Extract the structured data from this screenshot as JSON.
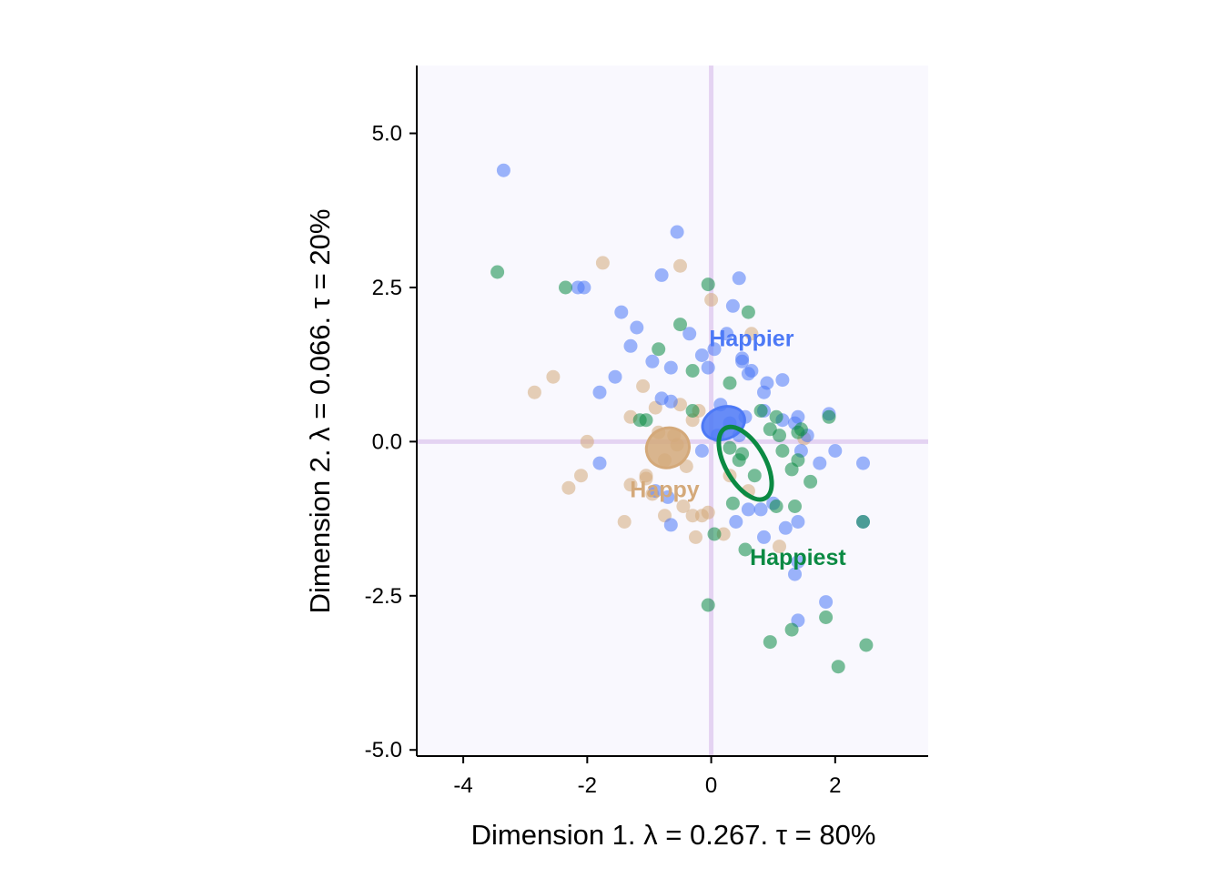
{
  "chart_data": {
    "type": "scatter",
    "title": "",
    "xlabel": "Dimension 1.   λ = 0.267.  τ = 80%",
    "ylabel": "Dimension 2.   λ = 0.066.  τ = 20%",
    "xlim": [
      -4.75,
      3.5
    ],
    "ylim": [
      -5.1,
      6.1
    ],
    "x_ticks": [
      -4,
      -2,
      0,
      2
    ],
    "y_ticks": [
      5.0,
      2.5,
      0.0,
      -2.5,
      -5.0
    ],
    "x_tick_labels": [
      "-4",
      "-2",
      "0",
      "2"
    ],
    "y_tick_labels": [
      "5.0",
      "2.5",
      "0.0",
      "-2.5",
      "-5.0"
    ],
    "reference_lines": {
      "x": 0,
      "y": 0,
      "color": "#e4d3f2"
    },
    "panel_background": "#f9f8fe",
    "grid": false,
    "legend": "none",
    "series": [
      {
        "name": "Happy",
        "color": "#d4a97a",
        "centroid": [
          -0.7,
          -0.1
        ],
        "ellipse": {
          "rx": 0.35,
          "ry": 0.32,
          "angle": -20
        },
        "points": [
          [
            -0.5,
            2.85
          ],
          [
            -1.75,
            2.9
          ],
          [
            0.0,
            2.3
          ],
          [
            0.65,
            1.75
          ],
          [
            -2.55,
            1.05
          ],
          [
            -2.85,
            0.8
          ],
          [
            -1.1,
            0.9
          ],
          [
            -1.3,
            0.4
          ],
          [
            -0.5,
            0.6
          ],
          [
            -0.9,
            0.55
          ],
          [
            -2.0,
            0.0
          ],
          [
            -1.05,
            -0.55
          ],
          [
            -1.3,
            -0.7
          ],
          [
            -0.95,
            -0.85
          ],
          [
            -1.05,
            -0.6
          ],
          [
            -2.1,
            -0.55
          ],
          [
            -2.3,
            -0.75
          ],
          [
            -1.4,
            -1.3
          ],
          [
            -0.45,
            -1.05
          ],
          [
            -0.75,
            -1.2
          ],
          [
            -0.15,
            -1.2
          ],
          [
            -0.05,
            -1.15
          ],
          [
            -0.25,
            -1.55
          ],
          [
            -0.3,
            -1.2
          ],
          [
            0.2,
            -1.5
          ],
          [
            1.1,
            -1.7
          ],
          [
            0.6,
            -0.8
          ],
          [
            0.3,
            -0.55
          ],
          [
            -0.75,
            -0.3
          ],
          [
            -0.6,
            0.1
          ],
          [
            -0.3,
            0.35
          ],
          [
            -0.55,
            -0.05
          ],
          [
            -0.85,
            0.15
          ],
          [
            1.5,
            0.05
          ],
          [
            -0.4,
            -0.4
          ],
          [
            -0.2,
            0.5
          ]
        ]
      },
      {
        "name": "Happier",
        "color": "#4d79f6",
        "centroid": [
          0.2,
          0.3
        ],
        "ellipse": {
          "rx": 0.35,
          "ry": 0.26,
          "angle": -20
        },
        "points": [
          [
            -3.35,
            4.4
          ],
          [
            -0.55,
            3.4
          ],
          [
            -0.8,
            2.7
          ],
          [
            0.45,
            2.65
          ],
          [
            -2.05,
            2.5
          ],
          [
            -2.15,
            2.5
          ],
          [
            0.35,
            2.2
          ],
          [
            -1.45,
            2.1
          ],
          [
            -1.2,
            1.85
          ],
          [
            -0.35,
            1.75
          ],
          [
            0.25,
            1.75
          ],
          [
            -1.3,
            1.55
          ],
          [
            0.05,
            1.5
          ],
          [
            -0.15,
            1.4
          ],
          [
            0.5,
            1.35
          ],
          [
            0.5,
            1.3
          ],
          [
            -0.95,
            1.3
          ],
          [
            -0.65,
            1.2
          ],
          [
            -0.05,
            1.2
          ],
          [
            0.65,
            1.15
          ],
          [
            0.6,
            1.1
          ],
          [
            -1.55,
            1.05
          ],
          [
            -1.8,
            0.8
          ],
          [
            1.15,
            1.0
          ],
          [
            0.9,
            0.95
          ],
          [
            0.85,
            0.8
          ],
          [
            -0.8,
            0.7
          ],
          [
            -0.65,
            0.65
          ],
          [
            0.55,
            0.4
          ],
          [
            1.15,
            0.35
          ],
          [
            1.4,
            0.4
          ],
          [
            1.9,
            0.45
          ],
          [
            0.85,
            0.5
          ],
          [
            1.35,
            0.3
          ],
          [
            1.55,
            0.1
          ],
          [
            1.45,
            -0.15
          ],
          [
            2.0,
            -0.15
          ],
          [
            1.75,
            -0.35
          ],
          [
            2.45,
            -0.35
          ],
          [
            -1.8,
            -0.35
          ],
          [
            -0.9,
            -0.8
          ],
          [
            -0.7,
            -0.9
          ],
          [
            -0.15,
            -0.15
          ],
          [
            0.1,
            0.1
          ],
          [
            0.6,
            -1.1
          ],
          [
            0.4,
            -1.3
          ],
          [
            0.8,
            -1.1
          ],
          [
            1.0,
            -1.0
          ],
          [
            1.4,
            -1.3
          ],
          [
            -0.65,
            -1.35
          ],
          [
            1.2,
            -1.4
          ],
          [
            0.85,
            -1.55
          ],
          [
            1.4,
            -1.95
          ],
          [
            1.35,
            -2.15
          ],
          [
            1.85,
            -2.6
          ],
          [
            1.4,
            -2.9
          ],
          [
            2.45,
            -1.3
          ],
          [
            0.15,
            0.6
          ],
          [
            0.3,
            0.3
          ],
          [
            0.45,
            0.1
          ]
        ]
      },
      {
        "name": "Happiest",
        "color": "#0b8a43",
        "centroid": [
          0.55,
          -0.35
        ],
        "ellipse": {
          "rx": 0.65,
          "ry": 0.32,
          "angle": 60
        },
        "points": [
          [
            -3.45,
            2.75
          ],
          [
            -2.35,
            2.5
          ],
          [
            -0.05,
            2.55
          ],
          [
            0.6,
            2.1
          ],
          [
            -0.5,
            1.9
          ],
          [
            -0.85,
            1.5
          ],
          [
            -0.3,
            1.15
          ],
          [
            0.3,
            0.95
          ],
          [
            0.8,
            0.5
          ],
          [
            1.05,
            0.4
          ],
          [
            1.45,
            0.2
          ],
          [
            1.4,
            0.15
          ],
          [
            1.9,
            0.4
          ],
          [
            0.95,
            0.2
          ],
          [
            1.1,
            0.1
          ],
          [
            -1.15,
            0.35
          ],
          [
            -1.05,
            0.35
          ],
          [
            -0.3,
            0.5
          ],
          [
            1.15,
            -0.15
          ],
          [
            1.4,
            -0.3
          ],
          [
            1.3,
            -0.45
          ],
          [
            1.6,
            -0.65
          ],
          [
            0.35,
            -1.0
          ],
          [
            1.05,
            -1.05
          ],
          [
            1.35,
            -1.05
          ],
          [
            0.05,
            -1.5
          ],
          [
            0.55,
            -1.75
          ],
          [
            -0.05,
            -2.65
          ],
          [
            0.95,
            -3.25
          ],
          [
            1.3,
            -3.05
          ],
          [
            1.85,
            -2.85
          ],
          [
            2.45,
            -1.3
          ],
          [
            2.5,
            -3.3
          ],
          [
            2.05,
            -3.65
          ],
          [
            0.45,
            -0.3
          ],
          [
            0.7,
            -0.55
          ],
          [
            0.3,
            -0.1
          ],
          [
            0.5,
            -0.2
          ]
        ]
      }
    ]
  }
}
